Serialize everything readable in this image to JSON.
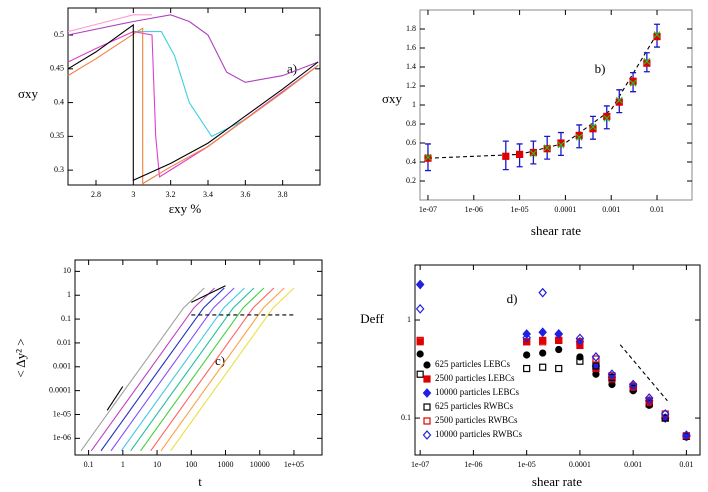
{
  "chart_data": [
    {
      "type": "line",
      "annotation": "a)",
      "xlabel": "εxy %",
      "ylabel": "σxy",
      "xlim": [
        2.65,
        4.0
      ],
      "ylim": [
        0.278,
        0.54
      ],
      "xticks": [
        2.8,
        3,
        3.2,
        3.4,
        3.6,
        3.8
      ],
      "yticks": [
        0.3,
        0.35,
        0.4,
        0.45,
        0.5
      ],
      "series": [
        {
          "color": "#ff9ad0",
          "x": [
            2.65,
            3.0,
            3.1
          ],
          "values": [
            0.505,
            0.53,
            0.53
          ]
        },
        {
          "color": "#b040c0",
          "x": [
            2.65,
            3.0,
            3.2,
            3.3,
            3.4,
            3.5,
            3.6,
            3.8,
            3.99
          ],
          "values": [
            0.5,
            0.52,
            0.53,
            0.52,
            0.5,
            0.445,
            0.43,
            0.44,
            0.46
          ]
        },
        {
          "color": "#40d0e0",
          "x": [
            3.0,
            3.15,
            3.22,
            3.3,
            3.42,
            3.6,
            3.8,
            3.99
          ],
          "values": [
            0.505,
            0.505,
            0.47,
            0.4,
            0.35,
            0.375,
            0.415,
            0.455
          ]
        },
        {
          "color": "#e040d0",
          "x": [
            2.65,
            2.8,
            3.0,
            3.1,
            3.12,
            3.14,
            3.4,
            3.99
          ],
          "values": [
            0.46,
            0.48,
            0.505,
            0.5,
            0.35,
            0.29,
            0.335,
            0.455
          ]
        },
        {
          "color": "#f08040",
          "x": [
            2.65,
            2.8,
            3.02,
            3.05,
            3.05,
            3.2,
            3.4,
            3.6,
            3.8,
            3.99
          ],
          "values": [
            0.44,
            0.465,
            0.505,
            0.51,
            0.28,
            0.305,
            0.335,
            0.375,
            0.415,
            0.455
          ]
        },
        {
          "color": "#000000",
          "x": [
            2.65,
            2.8,
            3.0,
            3.0,
            3.2,
            3.4,
            3.6,
            3.8,
            3.99
          ],
          "values": [
            0.45,
            0.475,
            0.515,
            0.285,
            0.31,
            0.34,
            0.38,
            0.42,
            0.46
          ]
        }
      ]
    },
    {
      "type": "scatter",
      "annotation": "b)",
      "xlabel": "shear rate",
      "ylabel": "σxy",
      "xscale": "log",
      "xlim": [
        6.7e-08,
        0.058
      ],
      "ylim": [
        0,
        2
      ],
      "xticks": [
        {
          "value": 1e-07,
          "label": "1e-07"
        },
        {
          "value": 1e-06,
          "label": "1e-06"
        },
        {
          "value": 1e-05,
          "label": "1e-05"
        },
        0.0001,
        0.001,
        0.01
      ],
      "yticks": [
        0.2,
        0.4,
        0.6,
        0.8,
        1,
        1.2,
        1.4,
        1.6,
        1.8
      ],
      "series": [
        {
          "color": "#000000",
          "marker": "none",
          "dash": true,
          "x": [
            1e-07,
            1e-05,
            0.0001,
            0.001,
            0.01
          ],
          "values": [
            0.44,
            0.48,
            0.6,
            0.95,
            1.75
          ]
        },
        {
          "color": "#1a1ac8",
          "marker": "none",
          "x": [
            1e-07,
            5e-06,
            1e-05,
            2e-05,
            4e-05,
            8e-05,
            0.0002,
            0.0004,
            0.0008,
            0.0015,
            0.003,
            0.006,
            0.01
          ],
          "values": [
            0.45,
            0.47,
            0.47,
            0.5,
            0.55,
            0.59,
            0.67,
            0.76,
            0.87,
            1.04,
            1.24,
            1.45,
            1.73
          ],
          "errors": [
            0.14,
            0.15,
            0.12,
            0.12,
            0.12,
            0.12,
            0.12,
            0.12,
            0.12,
            0.12,
            0.1,
            0.1,
            0.12
          ]
        },
        {
          "color": "#e00000",
          "marker": "square",
          "filled": true,
          "x": [
            1e-07,
            5e-06,
            1e-05,
            2e-05,
            4e-05,
            8e-05,
            0.0002,
            0.0004,
            0.0008,
            0.0015,
            0.003,
            0.006,
            0.01
          ],
          "values": [
            0.44,
            0.46,
            0.48,
            0.5,
            0.54,
            0.6,
            0.68,
            0.75,
            0.88,
            1.03,
            1.25,
            1.44,
            1.72
          ]
        },
        {
          "color": "#20c020",
          "marker": "x",
          "x": [
            1e-07,
            2e-05,
            4e-05,
            8e-05,
            0.0002,
            0.0004,
            0.0008,
            0.0015,
            0.003,
            0.006,
            0.01
          ],
          "values": [
            0.45,
            0.49,
            0.55,
            0.58,
            0.66,
            0.77,
            0.86,
            1.05,
            1.23,
            1.46,
            1.74
          ]
        }
      ]
    },
    {
      "type": "line",
      "annotation": "c)",
      "xlabel": "t",
      "ylabel": "< Δy² >",
      "xscale": "log",
      "yscale": "log",
      "xlim": [
        0.04,
        660000
      ],
      "ylim": [
        2e-07,
        30
      ],
      "xticks": [
        0.1,
        1,
        10,
        100,
        1000,
        10000,
        {
          "value": 100000,
          "label": "1e+05"
        }
      ],
      "yticks": [
        {
          "value": 1e-06,
          "label": "1e-06"
        },
        {
          "value": 1e-05,
          "label": "1e-05"
        },
        0.0001,
        0.001,
        0.01,
        0.1,
        1,
        10
      ],
      "series": [
        {
          "color": "#a0a0a0",
          "x": [
            0.06,
            0.6,
            6,
            60,
            240
          ],
          "values": [
            3e-07,
            3e-05,
            0.003,
            0.3,
            2
          ]
        },
        {
          "color": "#c040c0",
          "x": [
            0.12,
            1.2,
            12,
            120,
            480
          ],
          "values": [
            3e-07,
            3e-05,
            0.003,
            0.3,
            2
          ]
        },
        {
          "color": "#2030c0",
          "x": [
            0.23,
            2.3,
            23,
            230,
            920
          ],
          "values": [
            3e-07,
            3e-05,
            0.003,
            0.3,
            2
          ]
        },
        {
          "color": "#8050ff",
          "x": [
            0.45,
            4.5,
            45,
            450,
            1800
          ],
          "values": [
            3e-07,
            3e-05,
            0.003,
            0.3,
            2
          ]
        },
        {
          "color": "#40c8e8",
          "x": [
            0.9,
            9,
            90,
            900,
            3600
          ],
          "values": [
            3e-07,
            3e-05,
            0.003,
            0.3,
            2
          ]
        },
        {
          "color": "#20c0a0",
          "x": [
            1.7,
            17,
            170,
            1700,
            6800
          ],
          "values": [
            3e-07,
            3e-05,
            0.003,
            0.3,
            2
          ]
        },
        {
          "color": "#40d040",
          "x": [
            3.3,
            33,
            330,
            3300,
            13200
          ],
          "values": [
            3e-07,
            3e-05,
            0.003,
            0.3,
            2
          ]
        },
        {
          "color": "#ff6060",
          "x": [
            6.5,
            65,
            650,
            6500,
            26000
          ],
          "values": [
            3e-07,
            3e-05,
            0.003,
            0.3,
            2
          ]
        },
        {
          "color": "#ffa040",
          "x": [
            13,
            130,
            1300,
            13000,
            52000
          ],
          "values": [
            3e-07,
            3e-05,
            0.003,
            0.3,
            2
          ]
        },
        {
          "color": "#e8e040",
          "x": [
            25,
            250,
            2500,
            25000,
            100000
          ],
          "values": [
            3e-07,
            3e-05,
            0.003,
            0.3,
            2
          ]
        },
        {
          "color": "#000000",
          "x": [
            0.35,
            1
          ],
          "values": [
            1.5e-05,
            0.00015
          ]
        },
        {
          "color": "#000000",
          "x": [
            100,
            1000
          ],
          "values": [
            0.5,
            2.5
          ]
        },
        {
          "color": "#000000",
          "dash": true,
          "x": [
            100,
            100000
          ],
          "values": [
            0.15,
            0.15
          ]
        }
      ]
    },
    {
      "type": "scatter",
      "annotation": "d)",
      "xlabel": "shear rate",
      "ylabel": "Deff",
      "xscale": "log",
      "yscale": "log",
      "legend": "lower left",
      "xlim": [
        8e-08,
        0.018
      ],
      "ylim": [
        0.042,
        3.64
      ],
      "xticks": [
        {
          "value": 1e-07,
          "label": "1e-07"
        },
        {
          "value": 1e-06,
          "label": "1e-06"
        },
        {
          "value": 1e-05,
          "label": "1e-05"
        },
        0.0001,
        0.001,
        0.01
      ],
      "yticks": [
        0.1,
        1
      ],
      "series": [
        {
          "name": "625 particles LEBCs",
          "color": "#000000",
          "marker": "circle",
          "filled": true,
          "x": [
            1e-07,
            1e-05,
            2e-05,
            4e-05,
            0.0001,
            0.0002,
            0.0004,
            0.001,
            0.002,
            0.004,
            0.01
          ],
          "values": [
            0.45,
            0.44,
            0.46,
            0.5,
            0.42,
            0.28,
            0.22,
            0.19,
            0.135,
            0.1,
            0.064
          ]
        },
        {
          "name": "2500 particles LEBCs",
          "color": "#e00000",
          "marker": "square",
          "filled": true,
          "x": [
            1e-07,
            1e-05,
            2e-05,
            4e-05,
            0.0001,
            0.0002,
            0.0004,
            0.001,
            0.002,
            0.004,
            0.01
          ],
          "values": [
            0.6,
            0.6,
            0.62,
            0.62,
            0.55,
            0.32,
            0.25,
            0.2,
            0.14,
            0.1,
            0.065
          ]
        },
        {
          "name": "10000 particles LEBCs",
          "color": "#2020e0",
          "marker": "diamond",
          "filled": true,
          "x": [
            1e-07,
            1e-05,
            2e-05,
            4e-05,
            0.0001,
            0.0002,
            0.0004,
            0.001,
            0.002,
            0.004,
            0.01
          ],
          "values": [
            2.3,
            0.72,
            0.75,
            0.72,
            0.6,
            0.34,
            0.26,
            0.21,
            0.15,
            0.1,
            0.065
          ]
        },
        {
          "name": "625 particles RWBCs",
          "color": "#000000",
          "marker": "square",
          "filled": false,
          "x": [
            1e-07,
            1e-05,
            2e-05,
            4e-05,
            0.0001,
            0.0002,
            0.0004,
            0.001,
            0.002,
            0.004,
            0.01
          ],
          "values": [
            0.28,
            0.32,
            0.33,
            0.32,
            0.38,
            0.34,
            0.26,
            0.2,
            0.14,
            0.1,
            0.065
          ]
        },
        {
          "name": "2500 particles RWBCs",
          "color": "#e00000",
          "marker": "square",
          "filled": false,
          "x": [
            1e-07,
            1e-05,
            2e-05,
            4e-05,
            0.0001,
            0.0002,
            0.0004,
            0.001,
            0.002,
            0.004,
            0.01
          ],
          "values": [
            0.62,
            0.6,
            0.6,
            0.62,
            0.6,
            0.4,
            0.27,
            0.21,
            0.15,
            0.11,
            0.066
          ]
        },
        {
          "name": "10000 particles RWBCs",
          "color": "#2020e0",
          "marker": "diamond",
          "filled": false,
          "x": [
            1e-07,
            1e-05,
            2e-05,
            4e-05,
            0.0001,
            0.0002,
            0.0004,
            0.001,
            0.002,
            0.004,
            0.01
          ],
          "values": [
            1.3,
            0.66,
            1.9,
            0.72,
            0.65,
            0.42,
            0.28,
            0.22,
            0.16,
            0.11,
            0.067
          ]
        }
      ],
      "lines": [
        {
          "color": "#000000",
          "dash": true,
          "x": [
            0.00057,
            0.0044
          ],
          "values": [
            0.56,
            0.15
          ]
        }
      ]
    }
  ]
}
